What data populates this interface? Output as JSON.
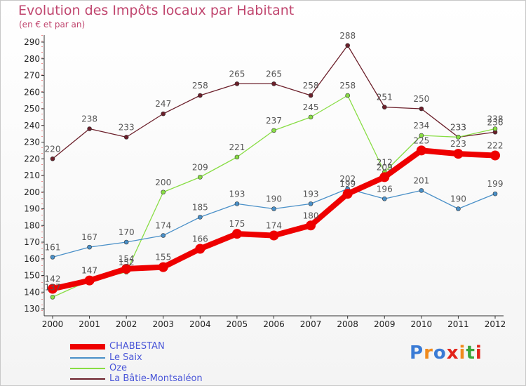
{
  "header": {
    "title": "Evolution des Impôts locaux par Habitant",
    "subtitle": "(en € et par an)"
  },
  "logo": {
    "text": "Proxiti",
    "letters": [
      "P",
      "r",
      "o",
      "x",
      "i",
      "t",
      "i"
    ],
    "colors": [
      "#3a7bd5",
      "#f08a1c",
      "#3a7bd5",
      "#e2231a",
      "#f08a1c",
      "#3aa53a",
      "#e2231a"
    ]
  },
  "chart_data": {
    "type": "line",
    "title": "Evolution des Impôts locaux par Habitant",
    "subtitle": "(en € et par an)",
    "xlabel": "",
    "ylabel": "",
    "x": [
      "2000",
      "2001",
      "2002",
      "2003",
      "2004",
      "2005",
      "2006",
      "2007",
      "2008",
      "2009",
      "2010",
      "2011",
      "2012"
    ],
    "ylim": [
      130,
      295
    ],
    "yticks": [
      130,
      140,
      150,
      160,
      170,
      180,
      190,
      200,
      210,
      220,
      230,
      240,
      250,
      260,
      270,
      280,
      290
    ],
    "grid": false,
    "legend_position": "bottom-left",
    "series": [
      {
        "name": "CHABESTAN",
        "color": "#ee0000",
        "width": 8,
        "marker": 7,
        "values": [
          142,
          147,
          154,
          155,
          166,
          175,
          174,
          180,
          199,
          209,
          225,
          223,
          222
        ],
        "labels": [
          "142",
          "147",
          "154",
          "155",
          "166",
          "175",
          "174",
          "180",
          "199",
          "209",
          "225",
          "223",
          "222"
        ]
      },
      {
        "name": "Le Saix",
        "color": "#4a90c8",
        "width": 1.3,
        "marker": 3,
        "values": [
          161,
          167,
          170,
          174,
          185,
          193,
          190,
          193,
          202,
          196,
          201,
          190,
          199
        ],
        "labels": [
          "161",
          "167",
          "170",
          "174",
          "185",
          "193",
          "190",
          "193",
          "202",
          "196",
          "201",
          "190",
          "199"
        ]
      },
      {
        "name": "Oze",
        "color": "#88dd44",
        "width": 1.3,
        "marker": 3,
        "values": [
          137,
          147,
          152,
          200,
          209,
          221,
          237,
          245,
          258,
          212,
          234,
          233,
          238
        ],
        "labels": [
          "137",
          "147",
          "152",
          "200",
          "209",
          "221",
          "237",
          "245",
          "258",
          "212",
          "234",
          "233",
          "238"
        ]
      },
      {
        "name": "La Bâtie-Montsaléon",
        "color": "#6b1f2a",
        "width": 1.3,
        "marker": 3,
        "values": [
          220,
          238,
          233,
          247,
          258,
          265,
          265,
          258,
          288,
          251,
          250,
          233,
          236
        ],
        "labels": [
          "220",
          "238",
          "233",
          "247",
          "258",
          "265",
          "265",
          "258",
          "288",
          "251",
          "250",
          "233",
          "236"
        ]
      }
    ]
  }
}
